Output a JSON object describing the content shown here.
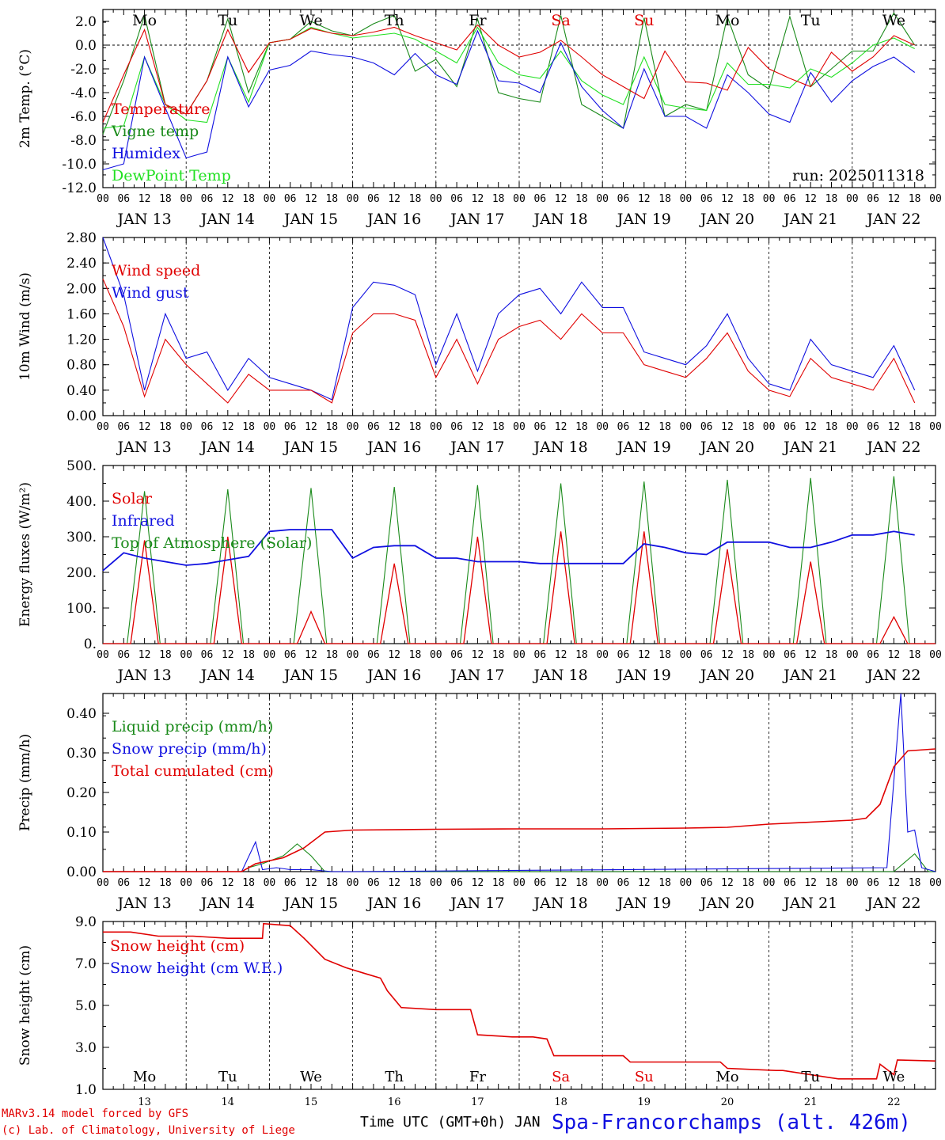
{
  "colors": {
    "red": "#e00000",
    "green": "#1a8a1a",
    "blue": "#1010e0",
    "lightgreen": "#22e022",
    "black": "#000000"
  },
  "x_axis": {
    "hour_labels": [
      "00",
      "06",
      "12",
      "18"
    ],
    "end_label": "00",
    "day_labels": [
      "JAN 13",
      "JAN 14",
      "JAN 15",
      "JAN 16",
      "JAN 17",
      "JAN 18",
      "JAN 19",
      "JAN 20",
      "JAN 21",
      "JAN 22"
    ],
    "weekday_labels": [
      "Mo",
      "Tu",
      "We",
      "Th",
      "Fr",
      "Sa",
      "Su",
      "Mo",
      "Tu",
      "We"
    ],
    "weekday_colors": [
      "black",
      "black",
      "black",
      "black",
      "black",
      "red",
      "red",
      "black",
      "black",
      "black"
    ],
    "day_numbers": [
      "13",
      "14",
      "15",
      "16",
      "17",
      "18",
      "19",
      "20",
      "21",
      "22"
    ],
    "xlabel": "Time UTC (GMT+0h) JAN"
  },
  "footer": {
    "line1": "MARv3.14 model forced by GFS",
    "line2": "(c) Lab. of Climatology, University of Liege",
    "station": "Spa-Francorchamps (alt. 426m)"
  },
  "chart_data": [
    {
      "type": "line",
      "ylabel": "2m Temp. (°C)",
      "ylim": [
        -12,
        3
      ],
      "yticks": [
        "-12.0",
        "-10.0",
        "-8.0",
        "-6.0",
        "-4.0",
        "-2.0",
        "0.0",
        "2.0"
      ],
      "annotation": "run: 2025011318",
      "x_hours": [
        0,
        6,
        12,
        18,
        24,
        30,
        36,
        42,
        48,
        54,
        60,
        66,
        72,
        78,
        84,
        90,
        96,
        102,
        108,
        114,
        120,
        126,
        132,
        138,
        144,
        150,
        156,
        162,
        168,
        174,
        180,
        186,
        192,
        198,
        204,
        210,
        216,
        222,
        228,
        234
      ],
      "series": [
        {
          "name": "Temperature",
          "color": "red",
          "values": [
            -6.5,
            -2.5,
            1.3,
            -5,
            -5.8,
            -3,
            1.3,
            -2.3,
            0.2,
            0.5,
            1.4,
            1,
            0.8,
            1.1,
            1.5,
            0.8,
            0.2,
            -0.4,
            1.7,
            0,
            -1,
            -0.6,
            0.4,
            -1,
            -2.5,
            -3.5,
            -4.5,
            -0.5,
            -3.1,
            -3.2,
            -3.8,
            -0.2,
            -2,
            -2.8,
            -3.5,
            -0.6,
            -2.2,
            -1,
            0.8,
            0
          ]
        },
        {
          "name": "Vigne temp",
          "color": "green",
          "values": [
            -7.5,
            -3,
            2.5,
            -5,
            -5.8,
            -3,
            2.2,
            -4,
            0.2,
            0.5,
            2,
            1.2,
            0.8,
            1.8,
            2.5,
            -2.2,
            -1.2,
            -3.5,
            2.2,
            -4,
            -4.5,
            -4.8,
            2.5,
            -5,
            -6,
            -7,
            2.3,
            -6,
            -5,
            -5.5,
            2.4,
            -2.5,
            -3.7,
            2.4,
            -3.5,
            -2,
            -0.5,
            -0.5,
            2.7,
            0
          ]
        },
        {
          "name": "Humidex",
          "color": "blue",
          "values": [
            -10.5,
            -10,
            -1,
            -5.3,
            -9.5,
            -9,
            -1,
            -5.2,
            -2.1,
            -1.7,
            -0.5,
            -0.8,
            -1,
            -1.5,
            -2.5,
            -0.7,
            -2.5,
            -3.3,
            1.2,
            -3,
            -3.2,
            -4,
            0.2,
            -3.5,
            -5.5,
            -7,
            -2,
            -6,
            -6,
            -7,
            -2.5,
            -4,
            -5.8,
            -6.5,
            -2.3,
            -4.8,
            -3,
            -1.8,
            -1,
            -2.3
          ]
        },
        {
          "name": "DewPoint Temp",
          "color": "lightgreen",
          "values": [
            -7,
            -6.8,
            -1,
            -5,
            -6.3,
            -6.5,
            -1,
            -4.8,
            0.2,
            0.5,
            1.5,
            1,
            0.6,
            0.8,
            1,
            0.5,
            -0.5,
            -1.5,
            1.5,
            -1.5,
            -2.5,
            -2.8,
            -0.5,
            -3,
            -4.2,
            -5,
            -1,
            -5,
            -5.3,
            -5.5,
            -1.5,
            -3.3,
            -3.3,
            -3.6,
            -2,
            -2.7,
            -1.5,
            0,
            0.6,
            -0.3
          ]
        }
      ]
    },
    {
      "type": "line",
      "ylabel": "10m Wind (m/s)",
      "ylim": [
        0,
        2.8
      ],
      "yticks": [
        "0.00",
        "0.40",
        "0.80",
        "1.20",
        "1.60",
        "2.00",
        "2.40",
        "2.80"
      ],
      "x_hours": [
        0,
        6,
        12,
        18,
        24,
        30,
        36,
        42,
        48,
        54,
        60,
        66,
        72,
        78,
        84,
        90,
        96,
        102,
        108,
        114,
        120,
        126,
        132,
        138,
        144,
        150,
        156,
        162,
        168,
        174,
        180,
        186,
        192,
        198,
        204,
        210,
        216,
        222,
        228,
        234
      ],
      "series": [
        {
          "name": "Wind speed",
          "color": "red",
          "values": [
            2.15,
            1.4,
            0.3,
            1.2,
            0.8,
            0.5,
            0.2,
            0.65,
            0.4,
            0.4,
            0.4,
            0.2,
            1.3,
            1.6,
            1.6,
            1.5,
            0.6,
            1.2,
            0.5,
            1.2,
            1.4,
            1.5,
            1.2,
            1.6,
            1.3,
            1.3,
            0.8,
            0.7,
            0.6,
            0.9,
            1.3,
            0.7,
            0.4,
            0.3,
            0.9,
            0.6,
            0.5,
            0.4,
            0.9,
            0.2
          ]
        },
        {
          "name": "Wind gust",
          "color": "blue",
          "values": [
            2.8,
            1.9,
            0.4,
            1.6,
            0.9,
            1.0,
            0.4,
            0.9,
            0.6,
            0.5,
            0.4,
            0.25,
            1.7,
            2.1,
            2.05,
            1.9,
            0.8,
            1.6,
            0.7,
            1.6,
            1.9,
            2.0,
            1.6,
            2.1,
            1.7,
            1.7,
            1.0,
            0.9,
            0.8,
            1.1,
            1.6,
            0.9,
            0.5,
            0.4,
            1.2,
            0.8,
            0.7,
            0.6,
            1.1,
            0.4
          ]
        }
      ]
    },
    {
      "type": "line",
      "ylabel": "Energy fluxes (W/m²)",
      "ylim": [
        0,
        500
      ],
      "yticks": [
        "0.",
        "100.",
        "200.",
        "300.",
        "400.",
        "500."
      ],
      "series": [
        {
          "name": "Solar",
          "color": "red",
          "daily_peaks": [
            290,
            300,
            90,
            225,
            300,
            315,
            315,
            265,
            230,
            75
          ]
        },
        {
          "name": "Infrared",
          "color": "blue",
          "x_hours": [
            0,
            6,
            12,
            18,
            24,
            30,
            36,
            42,
            48,
            54,
            60,
            66,
            72,
            78,
            84,
            90,
            96,
            102,
            108,
            114,
            120,
            126,
            132,
            138,
            144,
            150,
            156,
            162,
            168,
            174,
            180,
            186,
            192,
            198,
            204,
            210,
            216,
            222,
            228,
            234
          ],
          "values": [
            205,
            255,
            240,
            230,
            220,
            225,
            235,
            245,
            315,
            320,
            320,
            320,
            240,
            270,
            275,
            275,
            240,
            240,
            230,
            230,
            230,
            225,
            225,
            225,
            225,
            225,
            280,
            270,
            255,
            250,
            285,
            285,
            285,
            270,
            270,
            285,
            305,
            305,
            315,
            305
          ]
        },
        {
          "name": "Top of Atmosphere (Solar)",
          "color": "green",
          "daily_peaks": [
            428,
            433,
            437,
            440,
            445,
            450,
            455,
            460,
            465,
            470
          ]
        }
      ]
    },
    {
      "type": "line",
      "ylabel": "Precip (mm/h)",
      "ylim": [
        0,
        0.45
      ],
      "yticks": [
        "0.00",
        "0.10",
        "0.20",
        "0.30",
        "0.40"
      ],
      "series": [
        {
          "name": "Liquid precip (mm/h)",
          "color": "green",
          "x_hours": [
            0,
            40,
            42,
            46,
            52,
            56,
            60,
            64,
            72,
            228,
            234,
            238,
            240
          ],
          "values": [
            0,
            0,
            0.01,
            0.02,
            0.04,
            0.07,
            0.04,
            0,
            0,
            0,
            0.045,
            0,
            0
          ]
        },
        {
          "name": "Snow precip (mm/h)",
          "color": "blue",
          "x_hours": [
            0,
            40,
            44,
            46,
            50,
            54,
            60,
            66,
            72,
            226,
            230,
            232,
            234,
            236,
            240
          ],
          "values": [
            0,
            0,
            0.075,
            0.005,
            0.01,
            0.005,
            0.005,
            0,
            0,
            0.01,
            0.45,
            0.1,
            0.105,
            0.01,
            0
          ]
        },
        {
          "name": "Total cumulated (cm)",
          "color": "red",
          "x_hours": [
            0,
            40,
            44,
            52,
            58,
            64,
            72,
            96,
            120,
            144,
            168,
            180,
            192,
            204,
            216,
            220,
            224,
            228,
            232,
            240
          ],
          "values": [
            0,
            0,
            0.02,
            0.035,
            0.06,
            0.1,
            0.105,
            0.107,
            0.108,
            0.108,
            0.11,
            0.112,
            0.12,
            0.125,
            0.13,
            0.135,
            0.17,
            0.265,
            0.305,
            0.31
          ]
        }
      ]
    },
    {
      "type": "line",
      "ylabel": "Snow height (cm)",
      "ylim": [
        1,
        9
      ],
      "yticks": [
        "1.0",
        "3.0",
        "5.0",
        "7.0",
        "9.0"
      ],
      "series": [
        {
          "name": "Snow height (cm)",
          "color": "red",
          "x_hours": [
            0,
            8,
            16,
            26,
            36,
            42,
            46,
            46.3,
            54,
            58,
            64,
            70,
            76,
            80,
            82,
            86,
            96,
            102,
            106,
            108,
            118,
            124,
            128,
            130,
            142,
            150,
            152,
            164,
            178,
            180,
            194,
            196,
            212,
            218,
            223,
            224,
            228,
            229,
            240
          ],
          "values": [
            8.5,
            8.5,
            8.3,
            8.3,
            8.2,
            8.2,
            8.2,
            8.9,
            8.8,
            8.2,
            7.2,
            6.8,
            6.5,
            6.3,
            5.7,
            4.9,
            4.8,
            4.8,
            4.8,
            3.6,
            3.5,
            3.5,
            3.4,
            2.6,
            2.6,
            2.6,
            2.3,
            2.3,
            2.3,
            2,
            1.9,
            1.9,
            1.5,
            1.5,
            1.5,
            2.2,
            1.7,
            2.4,
            2.35
          ]
        },
        {
          "name": "Snow height (cm W.E.)",
          "color": "blue"
        }
      ]
    }
  ]
}
